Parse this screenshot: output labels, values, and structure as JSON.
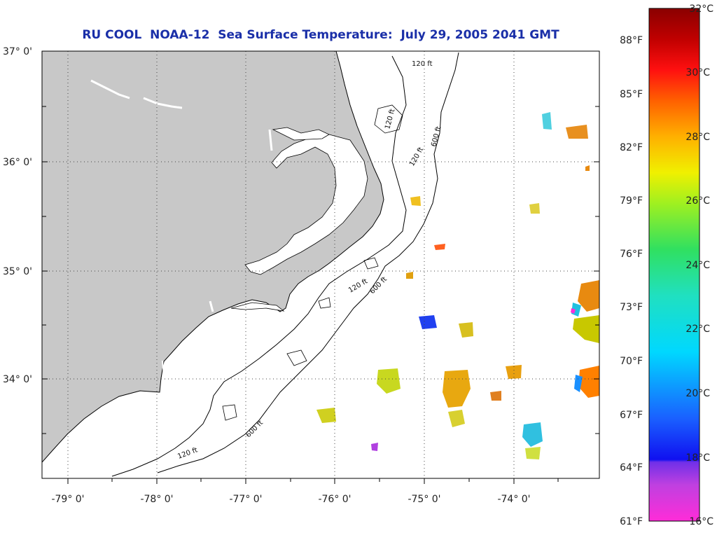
{
  "title": "RU COOL  NOAA-12  Sea Surface Temperature:  July 29, 2005 2041 GMT",
  "latitude_labels": [
    "37° 0'",
    "36° 0'",
    "35° 0'",
    "34° 0'"
  ],
  "longitude_labels": [
    "-79° 0'",
    "-78° 0'",
    "-77° 0'",
    "-76° 0'",
    "-75° 0'",
    "-74° 0'"
  ],
  "contour_labels": [
    "120 ft",
    "120 ft",
    "600 ft",
    "120 ft",
    "600 ft",
    "120 ft",
    "600 ft",
    "120 ft"
  ],
  "colorbar": {
    "celsius_labels": [
      "32°C",
      "30°C",
      "28°C",
      "26°C",
      "24°C",
      "22°C",
      "20°C",
      "18°C",
      "16°C"
    ],
    "fahrenheit_labels": [
      "88°F",
      "85°F",
      "82°F",
      "79°F",
      "76°F",
      "73°F",
      "70°F",
      "67°F",
      "64°F",
      "61°F"
    ]
  },
  "colors": {
    "land": "#c8c8c8",
    "ocean": "#ffffff",
    "title": "#1a2fa8",
    "grid": "#555555"
  }
}
